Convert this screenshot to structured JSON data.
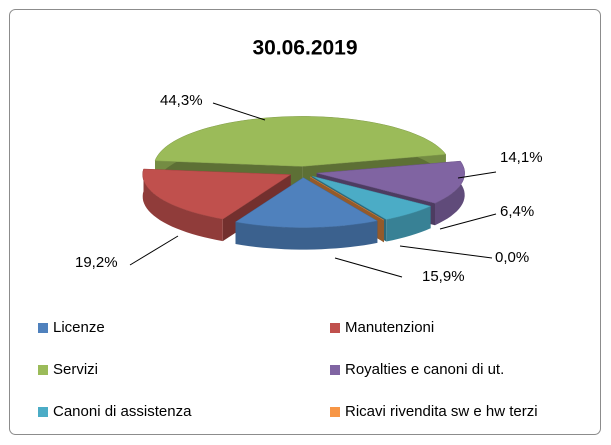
{
  "chart_data": {
    "type": "pie3d",
    "title": "30.06.2019",
    "categories": [
      "Licenze",
      "Manutenzioni",
      "Servizi",
      "Royalties e canoni di ut.",
      "Canoni di assistenza",
      "Ricavi rivendita sw e hw terzi"
    ],
    "values": [
      15.9,
      19.2,
      44.3,
      14.1,
      6.4,
      0.0
    ],
    "value_labels": [
      "15,9%",
      "19,2%",
      "44,3%",
      "14,1%",
      "6,4%",
      "0,0%"
    ],
    "colors": [
      "#4f81bd",
      "#c0504d",
      "#9bbb59",
      "#8064a2",
      "#4bacc6",
      "#f79646"
    ],
    "legend": "bottom"
  }
}
